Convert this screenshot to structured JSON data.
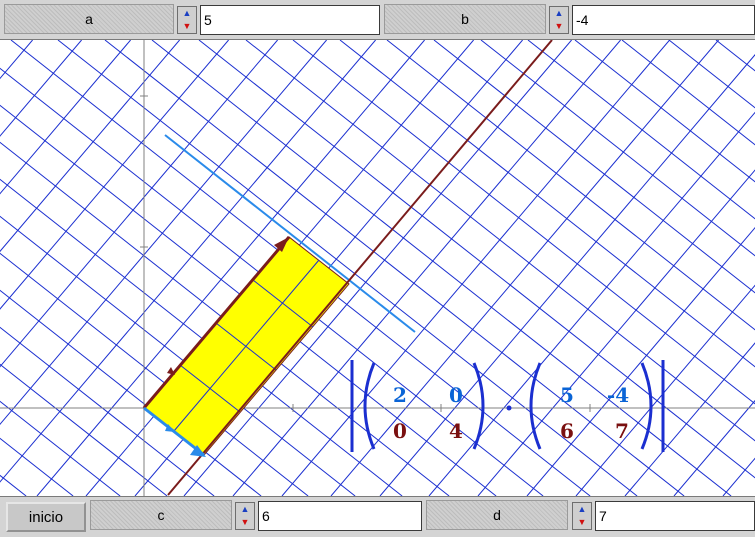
{
  "controls": {
    "a": {
      "label": "a",
      "value": "5"
    },
    "b": {
      "label": "b",
      "value": "-4"
    },
    "c": {
      "label": "c",
      "value": "6"
    },
    "d": {
      "label": "d",
      "value": "7"
    },
    "inicio": "inicio"
  },
  "spinner": {
    "up": "▲",
    "down": "▼"
  },
  "matrices": {
    "left": [
      [
        "2",
        "0"
      ],
      [
        "0",
        "4"
      ]
    ],
    "right": [
      [
        "5",
        "-4"
      ],
      [
        "6",
        "7"
      ]
    ]
  },
  "colors": {
    "grid": "#1b2fd0",
    "axis": "#808080",
    "line_dark": "#7a1c1c",
    "line_blue": "#2a8bea",
    "fill": "#ffff00",
    "matrix_blue": "#0a64d6",
    "matrix_dark": "#7a1010"
  }
}
